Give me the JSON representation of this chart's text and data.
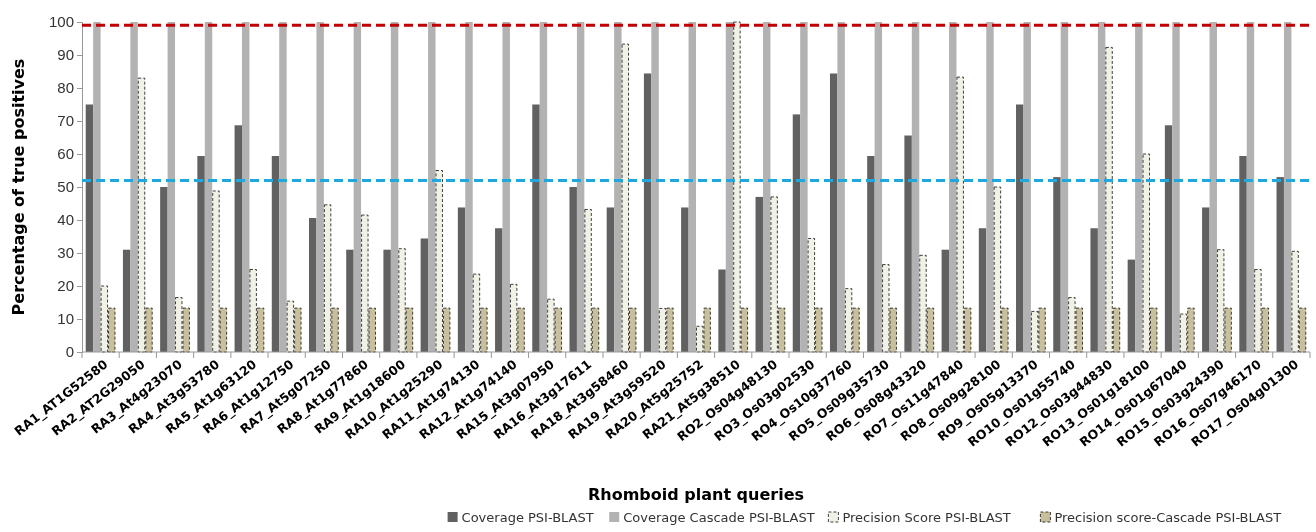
{
  "chart_data": {
    "type": "bar",
    "xlabel": "Rhomboid plant queries",
    "ylabel": "Percentage of true positives",
    "categories": [
      "RA1_AT1G52580",
      "RA2_AT2G29050",
      "RA3_At4g23070",
      "RA4_At3g53780",
      "RA5_At1g63120",
      "RA6_At1g12750",
      "RA7_At5g07250",
      "RA8_At1g77860",
      "RA9_At1g18600",
      "RA10_At1g25290",
      "RA11_At1g74130",
      "RA12_At1g74140",
      "RA15_At3g07950",
      "RA16_At3g17611",
      "RA18_At3g58460",
      "RA19_At3g59520",
      "RA20_At5g25752",
      "RA21_At5g38510",
      "RO2_Os04g48130",
      "RO3_Os03g02530",
      "RO4_Os10g37760",
      "RO5_Os09g35730",
      "RO6_Os08g43320",
      "RO7_Os11g47840",
      "RO8_Os09g28100",
      "RO9_Os05g13370",
      "RO10_Os01g55740",
      "RO12_Os03g44830",
      "RO13_Os01g18100",
      "RO14_Os01g67040",
      "RO15_Os03g24390",
      "RO16_Os07g46170",
      "RO17_Os04g01300"
    ],
    "series": [
      {
        "name": "Coverage PSI-BLAST",
        "color": "#616161",
        "values": [
          75,
          31,
          50,
          59.4,
          68.7,
          59.4,
          40.6,
          31,
          31,
          34.4,
          43.8,
          37.5,
          75,
          50,
          43.8,
          84.4,
          43.8,
          25,
          47,
          72,
          84.4,
          59.4,
          65.6,
          31,
          37.5,
          75,
          53,
          37.5,
          28,
          68.7,
          43.8,
          59.4,
          53
        ]
      },
      {
        "name": "Coverage Cascade PSI-BLAST",
        "color": "#b2b2b2",
        "values": [
          100,
          100,
          100,
          100,
          100,
          100,
          100,
          100,
          100,
          100,
          100,
          100,
          100,
          100,
          100,
          100,
          100,
          100,
          100,
          100,
          100,
          100,
          100,
          100,
          100,
          100,
          100,
          100,
          100,
          100,
          100,
          100,
          100
        ]
      },
      {
        "name": "Precision Score PSI-BLAST",
        "color": "#f1f1e6",
        "line_style": "dashed",
        "values": [
          20,
          83,
          16.5,
          48.8,
          25,
          15.4,
          44.6,
          41.5,
          31.3,
          55,
          23.6,
          20.5,
          16,
          43.2,
          93.3,
          13.2,
          7.8,
          100,
          47,
          34.4,
          19.2,
          26.5,
          29.3,
          83.3,
          50,
          12.3,
          16.5,
          92.3,
          60,
          11.5,
          31,
          25,
          30.5
        ]
      },
      {
        "name": "Precision score-Cascade PSI-BLAST",
        "color": "#c8c09c",
        "line_style": "dashed",
        "values": [
          13.3,
          13.3,
          13.3,
          13.3,
          13.3,
          13.3,
          13.3,
          13.3,
          13.3,
          13.3,
          13.3,
          13.3,
          13.3,
          13.3,
          13.3,
          13.3,
          13.3,
          13.3,
          13.3,
          13.3,
          13.3,
          13.3,
          13.3,
          13.3,
          13.3,
          13.3,
          13.3,
          13.3,
          13.3,
          13.3,
          13.3,
          13.3,
          13.3
        ]
      }
    ],
    "ylim": [
      0,
      100
    ],
    "yticks": [
      0,
      10,
      20,
      30,
      40,
      50,
      60,
      70,
      80,
      90,
      100
    ],
    "grid": false,
    "legend": "bottom right",
    "ref_lines": [
      {
        "axis": "y",
        "value": 99,
        "color": "#c00000",
        "line_style": "dashed"
      },
      {
        "axis": "y",
        "value": 52,
        "color": "#1fa8e0",
        "line_style": "dashed"
      }
    ]
  }
}
